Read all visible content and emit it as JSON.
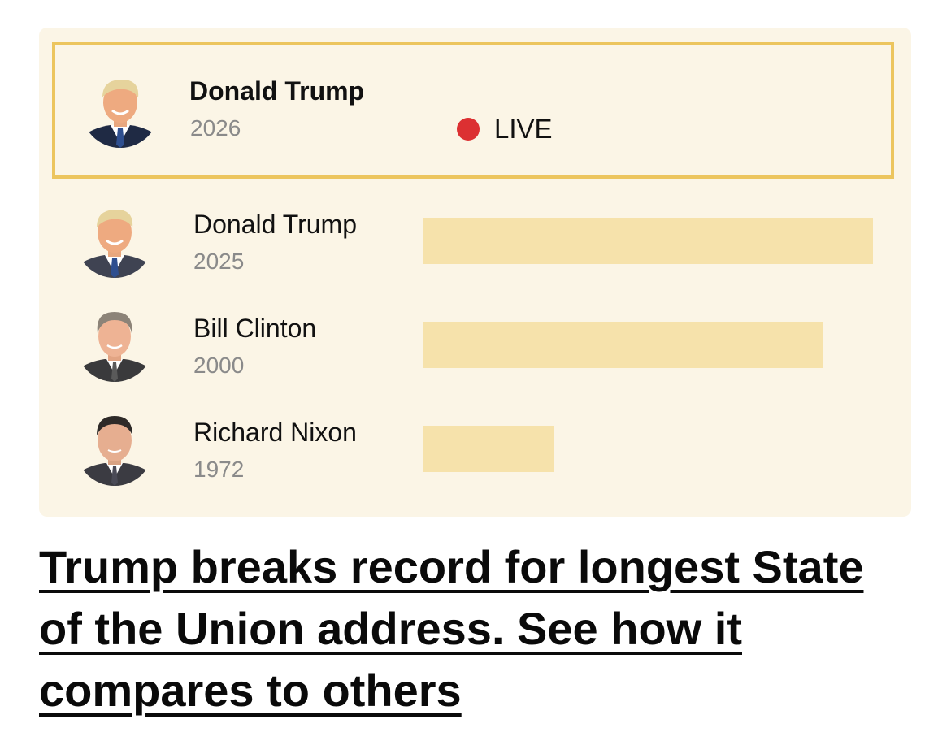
{
  "chart_data": {
    "type": "bar",
    "title": "",
    "xlabel": "",
    "ylabel": "",
    "live": {
      "name": "Donald Trump",
      "year": "2026",
      "status_label": "LIVE",
      "colors": {
        "dot": "#dc3032",
        "border": "#ecc55e"
      }
    },
    "categories": [
      "Donald Trump 2025",
      "Bill Clinton 2000",
      "Richard Nixon 1972"
    ],
    "rows": [
      {
        "name": "Donald Trump",
        "year": "2025",
        "value": 100,
        "portrait_icon": "portrait-trump-icon"
      },
      {
        "name": "Bill Clinton",
        "year": "2000",
        "value": 89,
        "portrait_icon": "portrait-clinton-icon"
      },
      {
        "name": "Richard Nixon",
        "year": "1972",
        "value": 29,
        "portrait_icon": "portrait-nixon-icon"
      }
    ],
    "value_max": 100,
    "colors": {
      "bar": "#f6e2ab",
      "background": "#fbf5e6"
    }
  },
  "headline": "Trump breaks record for longest State of the Union address. See how it compares to others"
}
